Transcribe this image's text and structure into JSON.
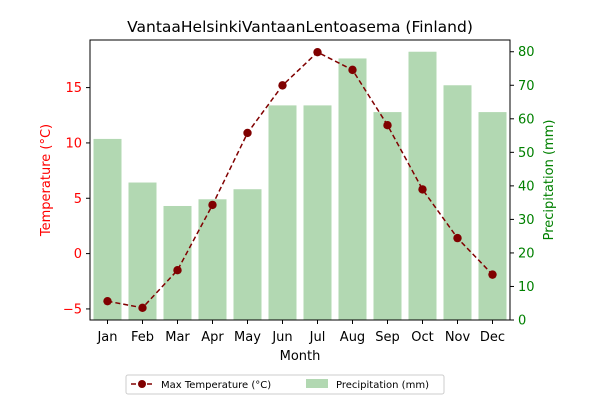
{
  "chart_data": {
    "type": "bar+line",
    "title": "VantaaHelsinkiVantaanLentoasema (Finland)",
    "xlabel": "Month",
    "categories": [
      "Jan",
      "Feb",
      "Mar",
      "Apr",
      "May",
      "Jun",
      "Jul",
      "Aug",
      "Sep",
      "Oct",
      "Nov",
      "Dec"
    ],
    "left_axis": {
      "label": "Temperature (°C)",
      "color": "#ff0000",
      "ylim": [
        -6,
        19.3
      ],
      "ticks": [
        -5,
        0,
        5,
        10,
        15
      ]
    },
    "right_axis": {
      "label": "Precipitation (mm)",
      "color": "#008000",
      "ylim": [
        0,
        83.5
      ],
      "ticks": [
        0,
        10,
        20,
        30,
        40,
        50,
        60,
        70,
        80
      ]
    },
    "series": [
      {
        "name": "Max Temperature (°C)",
        "kind": "line",
        "axis": "left",
        "color": "#800000",
        "style": "dashed-with-markers",
        "values": [
          -4.3,
          -4.9,
          -1.5,
          4.4,
          10.9,
          15.2,
          18.2,
          16.6,
          11.6,
          5.8,
          1.4,
          -1.9
        ]
      },
      {
        "name": "Precipitation (mm)",
        "kind": "bar",
        "axis": "right",
        "color": "#b2d8b2",
        "values": [
          54,
          41,
          34,
          36,
          39,
          64,
          64,
          78,
          62,
          80,
          70,
          62
        ]
      }
    ],
    "legend": "bottom-center",
    "grid": false
  }
}
